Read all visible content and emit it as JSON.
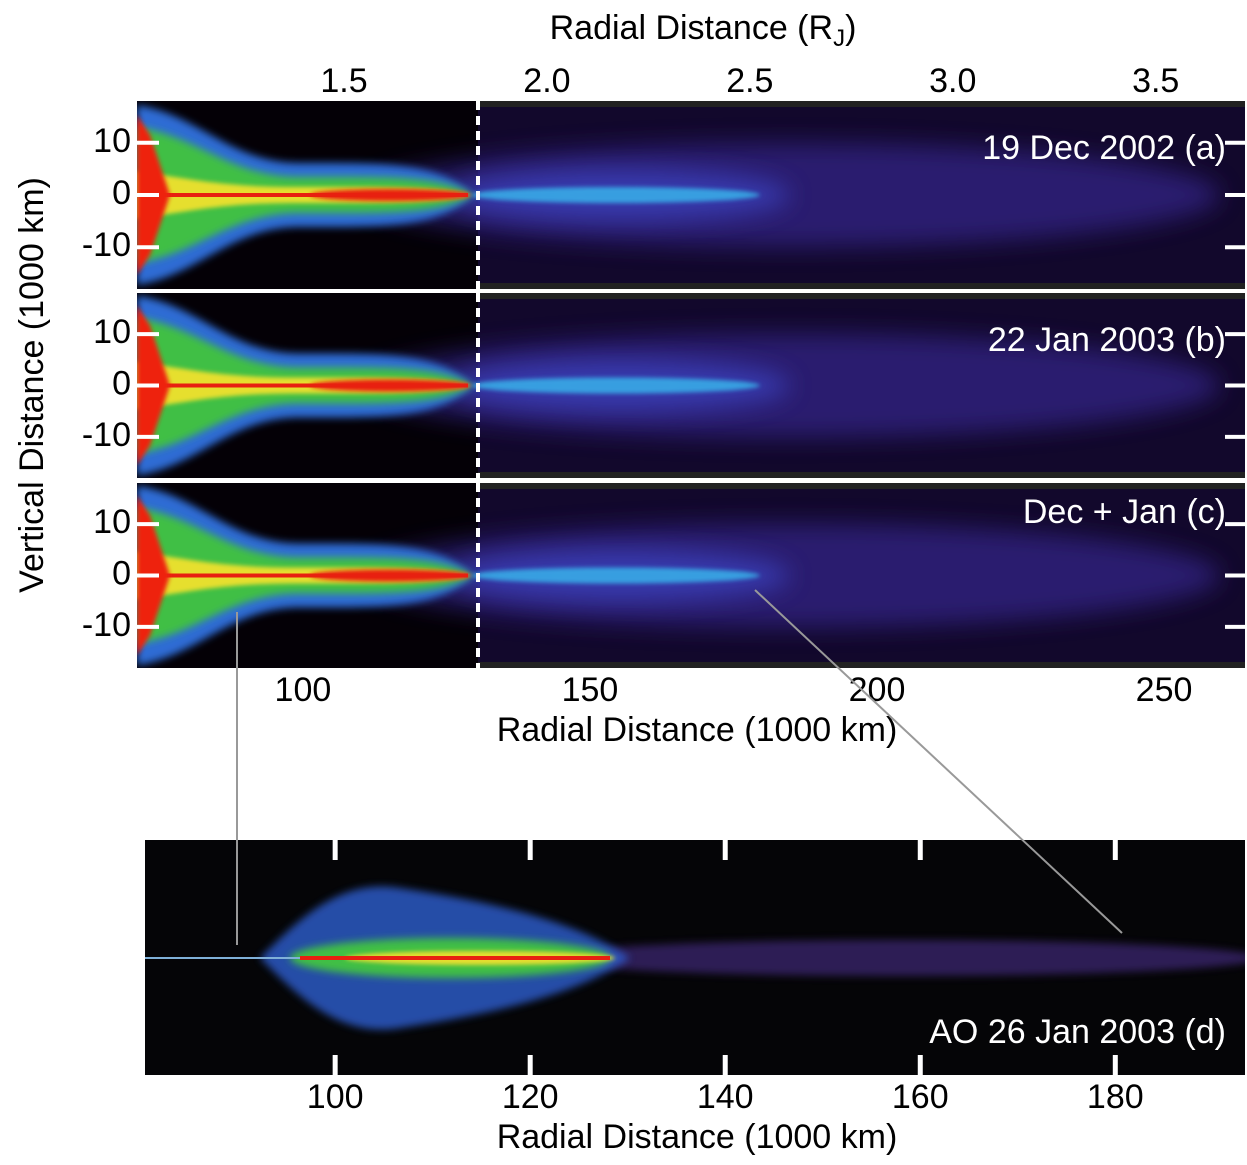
{
  "chart_data": [
    {
      "type": "image",
      "annotation": "19 Dec 2002 (a)",
      "x2label": {
        "text": "Radial Distance (R",
        "subscript": "J",
        "close": ")"
      },
      "x2lim": [
        0.99,
        3.72
      ],
      "x2ticks": [
        1.5,
        {
          "value": 2,
          "label": "2.0"
        },
        2.5,
        {
          "value": 3,
          "label": "3.0"
        },
        3.5
      ],
      "ylabel": "Vertical Distance (1000 km)",
      "ylim": [
        -18,
        18
      ],
      "yticks": [
        -10,
        0,
        10
      ]
    },
    {
      "type": "image",
      "annotation": "22 Jan 2003 (b)",
      "ylim": [
        -18,
        18
      ],
      "yticks": [
        -10,
        0,
        10
      ]
    },
    {
      "type": "image",
      "annotation": "Dec + Jan (c)",
      "ylim": [
        -18,
        18
      ],
      "yticks": [
        -10,
        0,
        10
      ],
      "xlim": [
        71.1,
        264.1
      ],
      "xticks": [
        100,
        150,
        200,
        250
      ],
      "xlabel": "Radial Distance (1000 km)"
    },
    {
      "type": "image",
      "annotation": "AO 26 Jan 2003 (d)",
      "xlim": [
        80.5,
        193.3
      ],
      "xticks": [
        100,
        120,
        140,
        160,
        180
      ],
      "xlabel": "Radial Distance (1000 km)"
    }
  ]
}
